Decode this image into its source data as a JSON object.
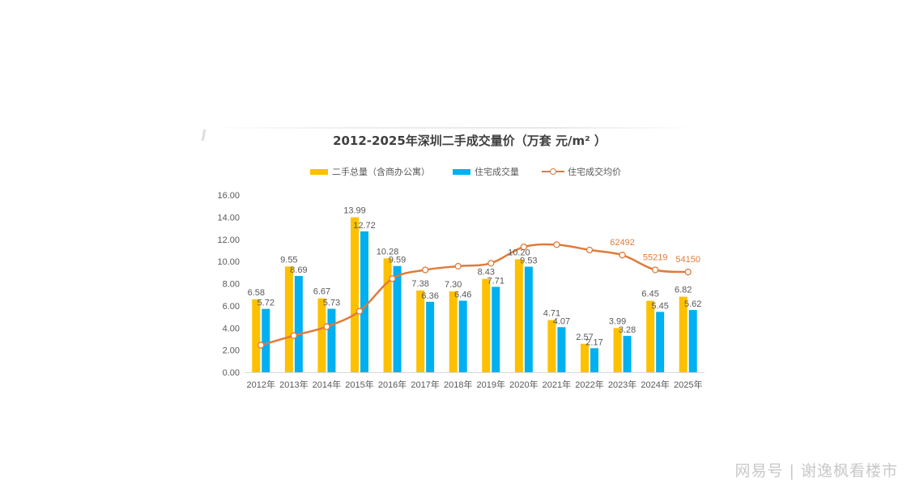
{
  "chart_data": {
    "type": "bar",
    "title": "2012-2025年深圳二手成交量价（万套  元/m² ）",
    "categories": [
      "2012年",
      "2013年",
      "2014年",
      "2015年",
      "2016年",
      "2017年",
      "2018年",
      "2019年",
      "2020年",
      "2021年",
      "2022年",
      "2023年",
      "2024年",
      "2025年"
    ],
    "series": [
      {
        "name": "二手总量（含商办公寓）",
        "type": "bar",
        "axis": "primary",
        "color": "#ffc000",
        "values": [
          6.58,
          9.55,
          6.67,
          13.99,
          10.28,
          7.38,
          7.3,
          8.43,
          10.2,
          4.71,
          2.57,
          3.99,
          6.45,
          6.82
        ],
        "labels": [
          "6.58",
          "9.55",
          "6.67",
          "13.99",
          "10.28",
          "7.38",
          "7.30",
          "8.43",
          "10.20",
          "4.71",
          "2.57",
          "3.99",
          "6.45",
          "6.82"
        ]
      },
      {
        "name": "住宅成交量",
        "type": "bar",
        "axis": "primary",
        "color": "#00b0f0",
        "values": [
          5.72,
          8.69,
          5.73,
          12.72,
          9.59,
          6.36,
          6.46,
          7.71,
          9.53,
          4.07,
          2.17,
          3.28,
          5.45,
          5.62
        ],
        "labels": [
          "5.72",
          "8.69",
          "5.73",
          "12.72",
          "9.59",
          "6.36",
          "6.46",
          "7.71",
          "9.53",
          "4.07",
          "2.17",
          "3.28",
          "5.45",
          "5.62"
        ]
      },
      {
        "name": "住宅成交均价",
        "type": "line",
        "axis": "secondary",
        "color": "#e07b39",
        "values": [
          18200,
          22900,
          27300,
          34900,
          50900,
          55200,
          57000,
          58500,
          66500,
          67600,
          65000,
          62492,
          55219,
          54150
        ],
        "labels": [
          "",
          "",
          "",
          "",
          "",
          "",
          "",
          "",
          "",
          "",
          "",
          "62492",
          "55219",
          "54150"
        ]
      }
    ],
    "xlabel": "",
    "ylabel": "",
    "ylim": [
      0,
      16
    ],
    "yticks": [
      "0.00",
      "2.00",
      "4.00",
      "6.00",
      "8.00",
      "10.00",
      "12.00",
      "14.00",
      "16.00"
    ],
    "secondary_ylim_estimate": [
      4900,
      92000
    ],
    "grid": false,
    "legend_position": "top"
  },
  "watermark": "网易号 | 谢逸枫看楼市"
}
